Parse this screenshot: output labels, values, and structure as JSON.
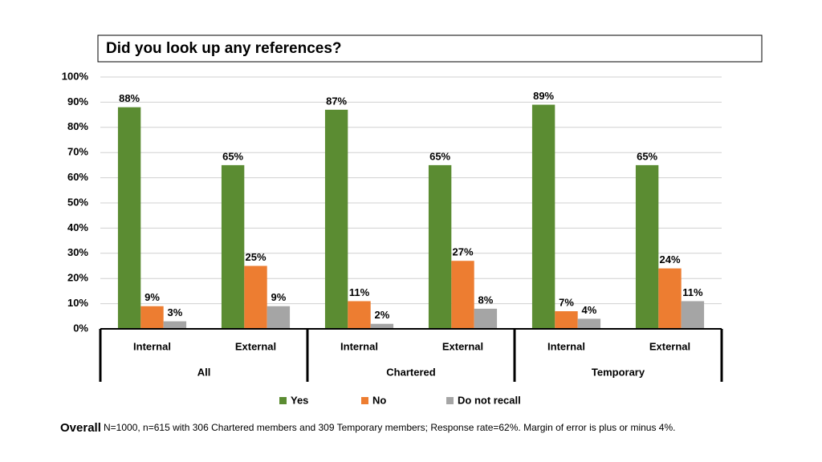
{
  "chart_data": {
    "type": "bar",
    "title": "Did you look up any references?",
    "categories": [
      "Internal",
      "External",
      "Internal",
      "External",
      "Internal",
      "External"
    ],
    "groups": [
      "All",
      "Chartered",
      "Temporary"
    ],
    "series": [
      {
        "name": "Yes",
        "color": "#5b8c32",
        "values": [
          88,
          65,
          87,
          65,
          89,
          65
        ],
        "value_labels": [
          "88%",
          "65%",
          "87%",
          "65%",
          "89%",
          "65%"
        ]
      },
      {
        "name": "No",
        "color": "#ed7d31",
        "values": [
          9,
          25,
          11,
          27,
          7,
          24
        ],
        "value_labels": [
          "9%",
          "25%",
          "11%",
          "27%",
          "7%",
          "24%"
        ]
      },
      {
        "name": "Do not recall",
        "color": "#a5a5a5",
        "values": [
          3,
          9,
          2,
          8,
          4,
          11
        ],
        "value_labels": [
          "3%",
          "9%",
          "2%",
          "8%",
          "4%",
          "11%"
        ]
      }
    ],
    "ylim": [
      0,
      100
    ],
    "yticks": [
      {
        "value": 0,
        "label": "0%"
      },
      {
        "value": 10,
        "label": "10%"
      },
      {
        "value": 20,
        "label": "20%"
      },
      {
        "value": 30,
        "label": "30%"
      },
      {
        "value": 40,
        "label": "40%"
      },
      {
        "value": 50,
        "label": "50%"
      },
      {
        "value": 60,
        "label": "60%"
      },
      {
        "value": 70,
        "label": "70%"
      },
      {
        "value": 80,
        "label": "80%"
      },
      {
        "value": 90,
        "label": "90%"
      },
      {
        "value": 100,
        "label": "100%"
      }
    ],
    "grid": true,
    "legend": "bottom",
    "footnote": {
      "lead": "Overall",
      "text": "N=1000, n=615 with 306 Chartered members and 309 Temporary members; Response rate=62%. Margin of error is plus or minus 4%."
    }
  }
}
